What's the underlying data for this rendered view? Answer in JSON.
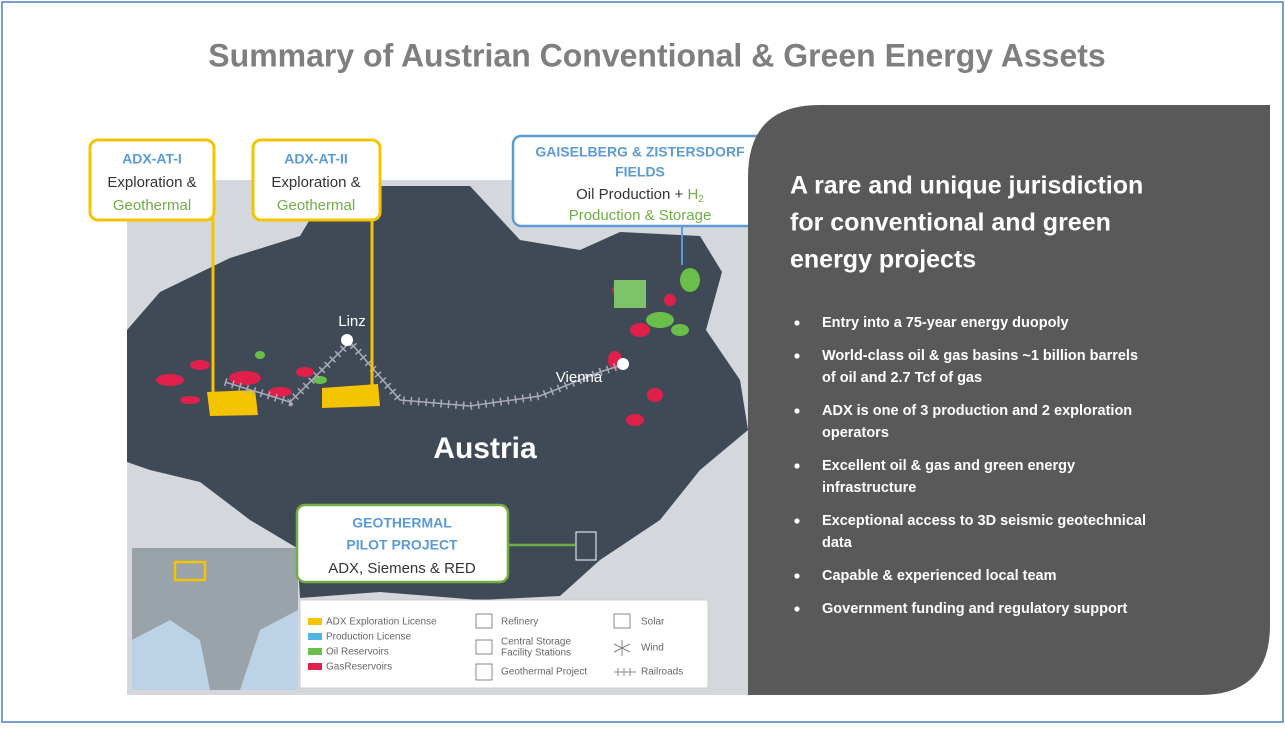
{
  "title": "Summary of Austrian Conventional & Green Energy Assets",
  "callouts": {
    "adx_at_1": {
      "title": "ADX-AT-I",
      "line1": "Exploration &",
      "line2": "Geothermal"
    },
    "adx_at_2": {
      "title": "ADX-AT-II",
      "line1": "Exploration &",
      "line2": "Geothermal"
    },
    "fields": {
      "title1": "GAISELBERG & ZISTERSDORF",
      "title2": "FIELDS",
      "line1": "Oil Production + ",
      "h": "H",
      "sub": "2",
      "line2": "Production & Storage"
    },
    "geothermal": {
      "title1": "GEOTHERMAL",
      "title2": "PILOT PROJECT",
      "line1": "ADX, Siemens & RED"
    }
  },
  "map": {
    "labels": [
      "Linz",
      "Vienna",
      "Austria"
    ],
    "legend": [
      "ADX Exploration License",
      "Production License",
      "Oil Reservoirs",
      "GasReservoirs",
      "Refinery",
      "Central Storage",
      "Facility Stations",
      "Geothermal Project",
      "Solar",
      "Wind",
      "Railroads"
    ]
  },
  "panel": {
    "heading": [
      "A rare and unique jurisdiction",
      "for conventional and green",
      "energy projects"
    ],
    "bullets": [
      [
        "Entry into a 75-year energy duopoly"
      ],
      [
        "World-class oil & gas basins ~1 billion barrels",
        "of oil and 2.7 Tcf of gas"
      ],
      [
        "ADX is one of 3 production and 2 exploration",
        "operators"
      ],
      [
        "Excellent oil & gas and green energy",
        "infrastructure"
      ],
      [
        "Exceptional access to 3D seismic geotechnical",
        "data"
      ],
      [
        "Capable & experienced local team"
      ],
      [
        "Government funding and regulatory support"
      ]
    ]
  }
}
